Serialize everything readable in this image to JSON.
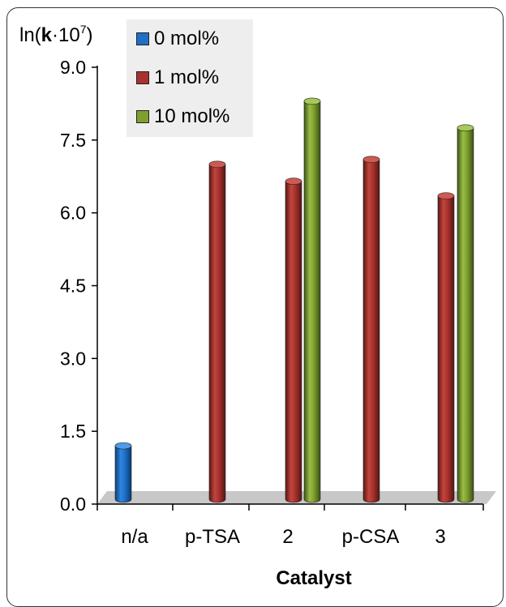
{
  "chart_data": {
    "type": "bar",
    "ylabel_prefix": "ln(",
    "ylabel_bold": "k",
    "ylabel_mid": "·10",
    "ylabel_sup": "7",
    "ylabel_suffix": ")",
    "xlabel": "Catalyst",
    "categories": [
      "n/a",
      "p-TSA",
      "2",
      "p-CSA",
      "3"
    ],
    "ylim": [
      0,
      9
    ],
    "yticks": [
      "0.0",
      "1.5",
      "3.0",
      "4.5",
      "6.0",
      "7.5",
      "9.0"
    ],
    "series": [
      {
        "name": "0 mol%",
        "color": "#1e6fc8",
        "values": [
          1.1,
          null,
          null,
          null,
          null
        ]
      },
      {
        "name": "1 mol%",
        "color": "#a8322e",
        "values": [
          null,
          6.9,
          6.55,
          7.0,
          6.25
        ]
      },
      {
        "name": "10 mol%",
        "color": "#7fa02f",
        "values": [
          null,
          null,
          8.2,
          null,
          7.65
        ]
      }
    ],
    "legend_position": "top-left"
  }
}
